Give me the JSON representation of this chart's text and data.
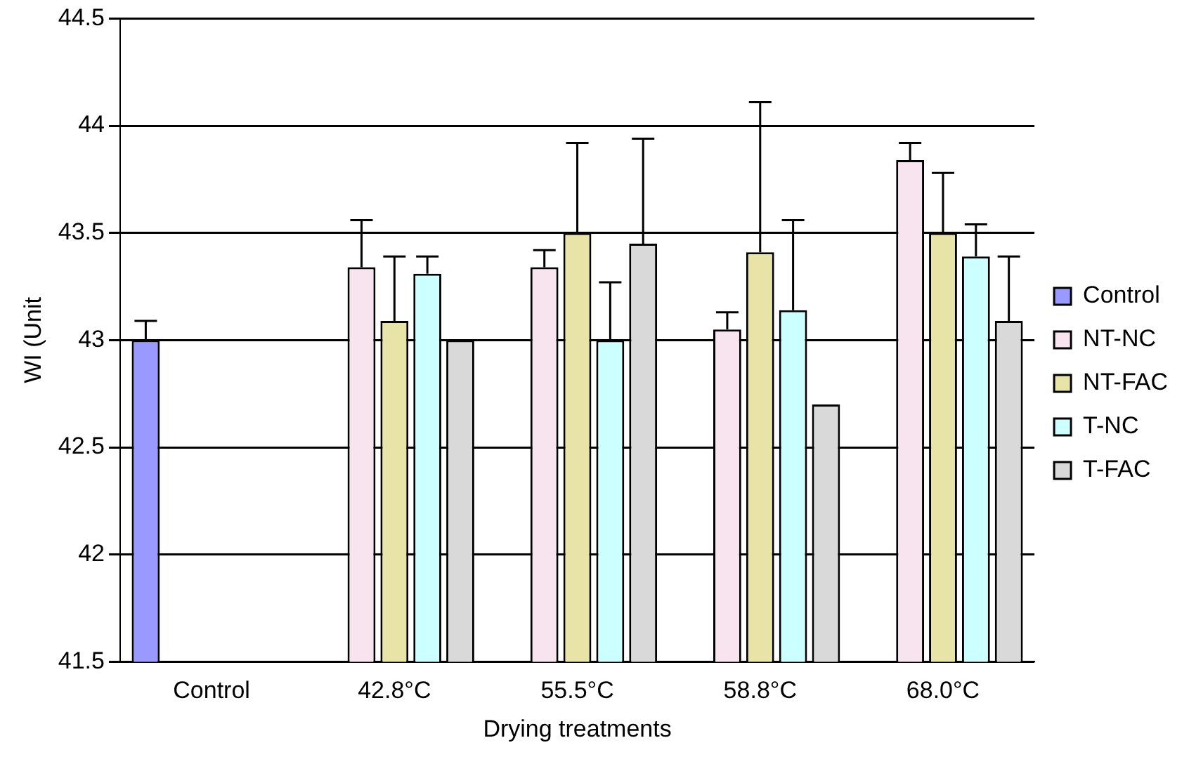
{
  "chart_data": {
    "type": "bar",
    "xlabel": "Drying treatments",
    "ylabel": "WI (Unit",
    "categories": [
      "Control",
      "42.8°C",
      "55.5°C",
      "58.8°C",
      "68.0°C"
    ],
    "series": [
      {
        "name": "Control",
        "color": "#9999ff",
        "values": [
          43.0,
          null,
          null,
          null,
          null
        ],
        "errors": [
          [
            43.0,
            43.09
          ],
          null,
          null,
          null,
          null
        ]
      },
      {
        "name": "NT-NC",
        "color": "#f7e4ee",
        "values": [
          null,
          43.34,
          43.34,
          43.05,
          43.84
        ],
        "errors": [
          null,
          [
            43.34,
            43.56
          ],
          [
            43.34,
            43.42
          ],
          [
            43.05,
            43.13
          ],
          [
            43.84,
            43.92
          ]
        ]
      },
      {
        "name": "NT-FAC",
        "color": "#e8e4a8",
        "values": [
          null,
          43.09,
          43.5,
          43.41,
          43.5
        ],
        "errors": [
          null,
          [
            43.09,
            43.39
          ],
          [
            43.5,
            43.92
          ],
          [
            43.41,
            44.11
          ],
          [
            43.5,
            43.78
          ]
        ]
      },
      {
        "name": "T-NC",
        "color": "#ccffff",
        "values": [
          null,
          43.31,
          43.0,
          43.14,
          43.39
        ],
        "errors": [
          null,
          [
            43.31,
            43.39
          ],
          [
            43.0,
            43.27
          ],
          [
            43.14,
            43.56
          ],
          [
            43.39,
            43.54
          ]
        ]
      },
      {
        "name": "T-FAC",
        "color": "#d9d9d9",
        "values": [
          null,
          43.0,
          43.45,
          42.7,
          43.09
        ],
        "errors": [
          null,
          null,
          [
            43.45,
            43.94
          ],
          null,
          [
            43.09,
            43.39
          ]
        ]
      }
    ],
    "ylim": [
      41.5,
      44.5
    ],
    "yticks": [
      41.5,
      42,
      42.5,
      43,
      43.5,
      44,
      44.5
    ],
    "grid": "y",
    "legend": "right"
  }
}
